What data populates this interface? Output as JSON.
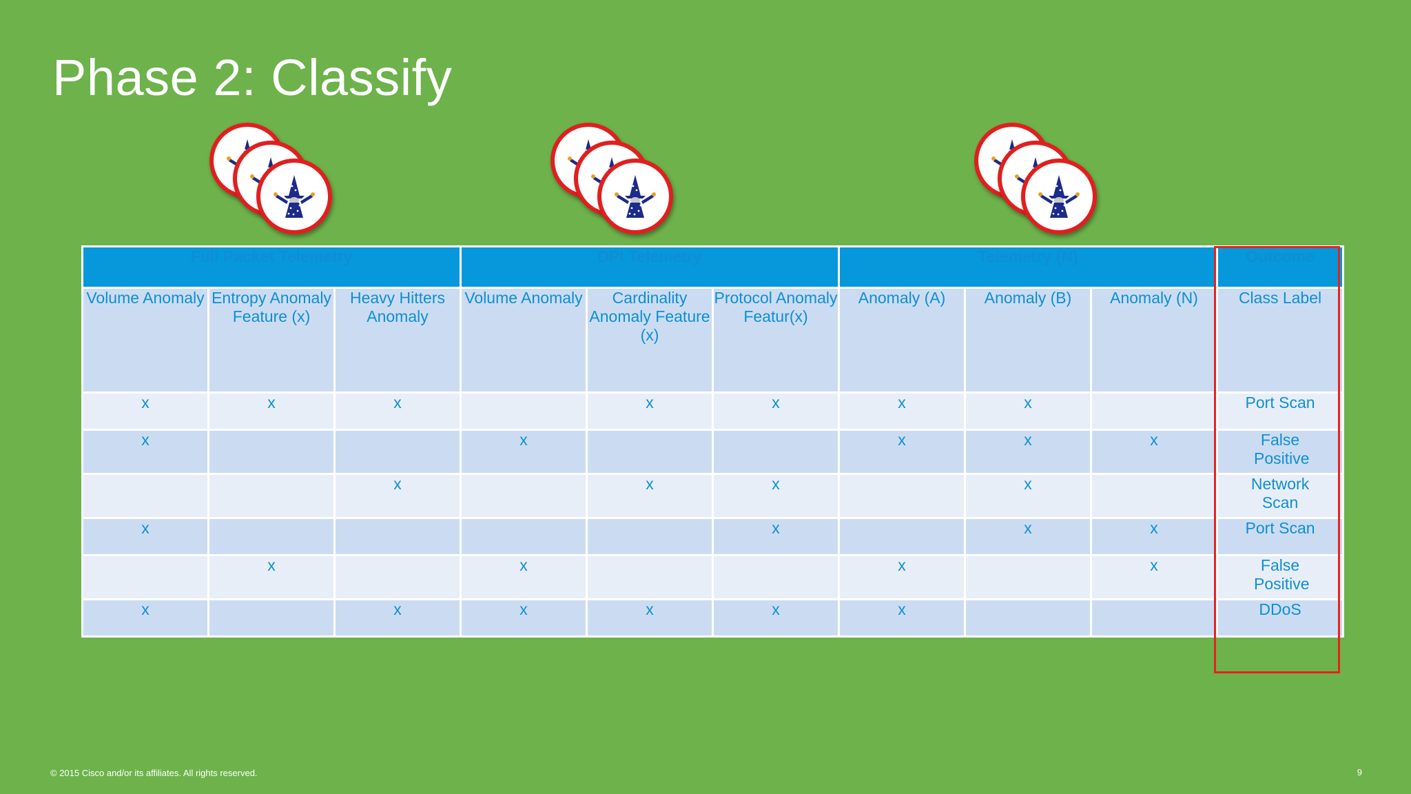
{
  "slide": {
    "title": "Phase 2: Classify",
    "footer": "© 2015 Cisco and/or its affiliates. All rights reserved.",
    "page_number": "9"
  },
  "colors": {
    "background": "#6db24a",
    "header": "#0797db",
    "cell_text": "#0e8fd2",
    "outcome_border": "#e8221f"
  },
  "table": {
    "groups": [
      "Full Packet Telemetry",
      "DPI Telemetry",
      "Telemetry (N)",
      "Outcome"
    ],
    "columns": [
      "Volume Anomaly",
      "Entropy Anomaly Feature (x)",
      "Heavy Hitters Anomaly",
      "Volume Anomaly",
      "Cardinality Anomaly Feature (x)",
      "Protocol Anomaly Featur(x)",
      "Anomaly (A)",
      "Anomaly (B)",
      "Anomaly (N)",
      "Class Label"
    ],
    "rows": [
      {
        "cells": [
          "x",
          "x",
          "x",
          "",
          "x",
          "x",
          "x",
          "x",
          ""
        ],
        "label": "Port Scan"
      },
      {
        "cells": [
          "x",
          "",
          "",
          "x",
          "",
          "",
          "x",
          "x",
          "x"
        ],
        "label": "False Positive"
      },
      {
        "cells": [
          "",
          "",
          "x",
          "",
          "x",
          "x",
          "",
          "x",
          ""
        ],
        "label": "Network Scan"
      },
      {
        "cells": [
          "x",
          "",
          "",
          "",
          "",
          "x",
          "",
          "x",
          "x"
        ],
        "label": "Port Scan"
      },
      {
        "cells": [
          "",
          "x",
          "",
          "x",
          "",
          "",
          "x",
          "",
          "x"
        ],
        "label": "False Positive"
      },
      {
        "cells": [
          "x",
          "",
          "x",
          "x",
          "x",
          "x",
          "x",
          "",
          ""
        ],
        "label": "DDoS"
      }
    ]
  }
}
